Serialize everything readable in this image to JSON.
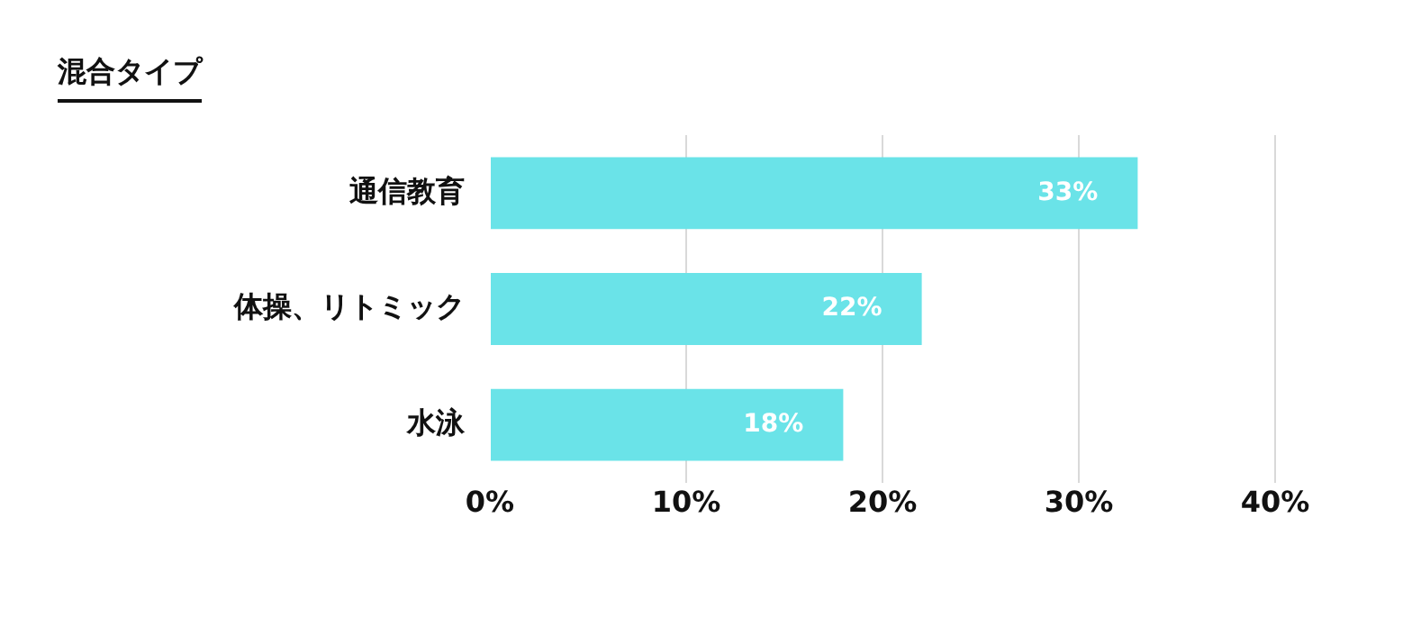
{
  "chart_data": {
    "type": "bar",
    "orientation": "horizontal",
    "title": "混合タイプ",
    "categories": [
      "通信教育",
      "体操、リトミック",
      "水泳"
    ],
    "values": [
      33,
      22,
      18
    ],
    "color": "#6ae3e8",
    "value_labels": [
      "33%",
      "22%",
      "18%"
    ],
    "xlim": [
      0,
      40
    ],
    "xticks": [
      {
        "value": 0,
        "label": "0%"
      },
      {
        "value": 10,
        "label": "10%"
      },
      {
        "value": 20,
        "label": "20%"
      },
      {
        "value": 30,
        "label": "30%"
      },
      {
        "value": 40,
        "label": "40%"
      }
    ],
    "grid": "x"
  }
}
